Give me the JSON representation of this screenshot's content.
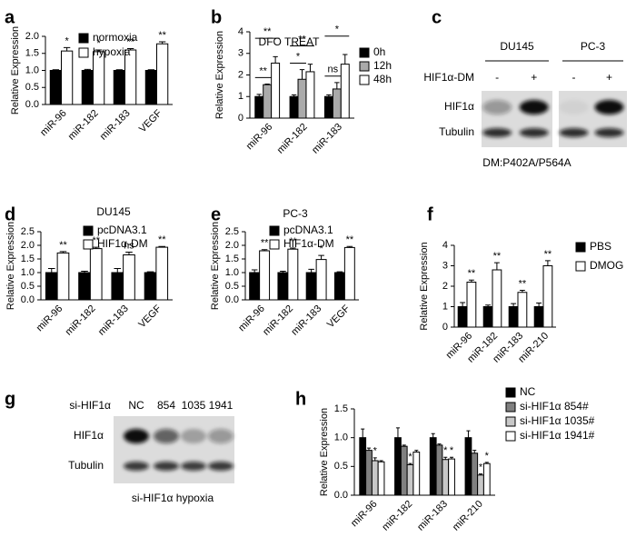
{
  "chart_data": [
    {
      "type": "bar",
      "panel": "a",
      "y_label": "Relative Expression",
      "categories": [
        "miR-96",
        "miR-182",
        "miR-183",
        "VEGF"
      ],
      "series": [
        {
          "name": "normoxia",
          "color": "#000000",
          "values": [
            1,
            1,
            1,
            1
          ],
          "errors": [
            0.02,
            0.03,
            0.02,
            0.02
          ],
          "significance": [
            null,
            null,
            null,
            null
          ]
        },
        {
          "name": "hypoxia",
          "color": "#ffffff",
          "values": [
            1.57,
            1.55,
            1.6,
            1.78
          ],
          "errors": [
            0.1,
            0.05,
            0.04,
            0.06
          ],
          "significance": [
            "*",
            "*",
            "**",
            "**"
          ]
        }
      ],
      "ylim": [
        0,
        2.0
      ],
      "yticks": [
        {
          "value": 0,
          "label": "0.0"
        },
        {
          "value": 0.5,
          "label": "0.5"
        },
        {
          "value": 1,
          "label": "1.0"
        },
        {
          "value": 1.5,
          "label": "1.5"
        },
        {
          "value": 2,
          "label": "2.0"
        }
      ]
    },
    {
      "type": "bar",
      "panel": "b",
      "title": "DFO TREAT",
      "y_label": "Relative Expression",
      "categories": [
        "miR-96",
        "miR-182",
        "miR-183"
      ],
      "series": [
        {
          "name": "0h",
          "color": "#000000",
          "values": [
            1,
            1,
            1
          ],
          "errors": [
            0.1,
            0.08,
            0.08
          ]
        },
        {
          "name": "12h",
          "color": "#aaaaaa",
          "values": [
            1.55,
            1.8,
            1.35
          ],
          "errors": [
            0.03,
            0.45,
            0.3
          ]
        },
        {
          "name": "48h",
          "color": "#ffffff",
          "values": [
            2.55,
            2.15,
            2.5
          ],
          "errors": [
            0.3,
            0.35,
            0.45
          ]
        }
      ],
      "comparisons": [
        {
          "category": 0,
          "from": 0,
          "to": 1,
          "label": "**"
        },
        {
          "category": 0,
          "from": 0,
          "to": 2,
          "label": "**"
        },
        {
          "category": 1,
          "from": 0,
          "to": 1,
          "label": "*"
        },
        {
          "category": 1,
          "from": 0,
          "to": 2,
          "label": "**"
        },
        {
          "category": 2,
          "from": 0,
          "to": 1,
          "label": "ns"
        },
        {
          "category": 2,
          "from": 0,
          "to": 2,
          "label": "*"
        }
      ],
      "ylim": [
        0,
        4
      ],
      "yticks": [
        0,
        1,
        2,
        3,
        4
      ]
    },
    {
      "type": "blot",
      "panel": "c",
      "treatment": "HIF1α-DM",
      "groups": [
        {
          "name": "DU145",
          "lanes": [
            "-",
            "+"
          ]
        },
        {
          "name": "PC-3",
          "lanes": [
            "-",
            "+"
          ]
        }
      ],
      "rows": [
        "HIF1α",
        "Tubulin"
      ],
      "caption": "DM:P402A/P564A"
    },
    {
      "type": "bar",
      "panel": "d",
      "title": "DU145",
      "y_label": "Relative Expression",
      "categories": [
        "miR-96",
        "miR-182",
        "miR-183",
        "VEGF"
      ],
      "series": [
        {
          "name": "pcDNA3.1",
          "color": "#000000",
          "values": [
            1,
            1,
            1,
            1
          ],
          "errors": [
            0.15,
            0.05,
            0.15,
            0.03
          ],
          "significance": [
            null,
            null,
            null,
            null
          ]
        },
        {
          "name": "HIF1α-DM",
          "color": "#ffffff",
          "values": [
            1.72,
            1.88,
            1.65,
            1.93
          ],
          "errors": [
            0.05,
            0.05,
            0.1,
            0.03
          ],
          "significance": [
            "**",
            "**",
            "ns",
            "**"
          ]
        }
      ],
      "ylim": [
        0,
        2.5
      ],
      "yticks": [
        {
          "value": 0,
          "label": "0.0"
        },
        {
          "value": 0.5,
          "label": "0.5"
        },
        {
          "value": 1,
          "label": "1.0"
        },
        {
          "value": 1.5,
          "label": "1.5"
        },
        {
          "value": 2,
          "label": "2.0"
        },
        {
          "value": 2.5,
          "label": "2.5"
        }
      ]
    },
    {
      "type": "bar",
      "panel": "e",
      "title": "PC-3",
      "y_label": "Relative Expression",
      "categories": [
        "miR-96",
        "miR-182",
        "miR-183",
        "VEGF"
      ],
      "series": [
        {
          "name": "pcDNA3.1",
          "color": "#000000",
          "values": [
            1,
            1,
            1,
            1
          ],
          "errors": [
            0.1,
            0.05,
            0.12,
            0.03
          ],
          "significance": [
            null,
            null,
            null,
            null
          ]
        },
        {
          "name": "HIF1α-DM",
          "color": "#ffffff",
          "values": [
            1.8,
            1.86,
            1.48,
            1.92
          ],
          "errors": [
            0.04,
            0.04,
            0.15,
            0.04
          ],
          "significance": [
            "**",
            "**",
            "*",
            "**"
          ]
        }
      ],
      "ylim": [
        0,
        2.5
      ],
      "yticks": [
        {
          "value": 0,
          "label": "0.0"
        },
        {
          "value": 0.5,
          "label": "0.5"
        },
        {
          "value": 1,
          "label": "1.0"
        },
        {
          "value": 1.5,
          "label": "1.5"
        },
        {
          "value": 2,
          "label": "2.0"
        },
        {
          "value": 2.5,
          "label": "2.5"
        }
      ]
    },
    {
      "type": "bar",
      "panel": "f",
      "y_label": "Relative Expression",
      "categories": [
        "miR-96",
        "miR-182",
        "miR-183",
        "miR-210"
      ],
      "series": [
        {
          "name": "PBS",
          "color": "#000000",
          "values": [
            1,
            1,
            1,
            1
          ],
          "errors": [
            0.2,
            0.08,
            0.15,
            0.18
          ],
          "significance": [
            null,
            null,
            null,
            null
          ]
        },
        {
          "name": "DMOG",
          "color": "#ffffff",
          "values": [
            2.2,
            2.8,
            1.7,
            3.0
          ],
          "errors": [
            0.1,
            0.35,
            0.1,
            0.25
          ],
          "significance": [
            "**",
            "**",
            "**",
            "**"
          ]
        }
      ],
      "ylim": [
        0,
        4
      ],
      "yticks": [
        0,
        1,
        2,
        3,
        4
      ]
    },
    {
      "type": "blot",
      "panel": "g",
      "treatment": "si-HIF1α",
      "groups": [
        {
          "lanes": [
            "NC",
            "854",
            "1035",
            "1941"
          ]
        }
      ],
      "rows": [
        "HIF1α",
        "Tubulin"
      ],
      "caption": "si-HIF1α hypoxia"
    },
    {
      "type": "bar",
      "panel": "h",
      "y_label": "Relative Expression",
      "categories": [
        "miR-96",
        "miR-182",
        "miR-183",
        "miR-210"
      ],
      "series": [
        {
          "name": "NC",
          "color": "#000000",
          "values": [
            1,
            1,
            1,
            1
          ],
          "errors": [
            0.15,
            0.17,
            0.07,
            0.12
          ],
          "significance": [
            null,
            null,
            null,
            null
          ]
        },
        {
          "name": "si-HIF1α 854#",
          "color": "#808080",
          "values": [
            0.78,
            0.85,
            0.87,
            0.73
          ],
          "errors": [
            0.04,
            0.02,
            0.02,
            0.05
          ],
          "significance": [
            null,
            null,
            null,
            null
          ]
        },
        {
          "name": "si-HIF1α 1035#",
          "color": "#c8c8c8",
          "values": [
            0.6,
            0.53,
            0.62,
            0.35
          ],
          "errors": [
            0.05,
            0.02,
            0.04,
            0.02
          ],
          "significance": [
            "*",
            "*",
            "*",
            "*"
          ]
        },
        {
          "name": "si-HIF1α 1941#",
          "color": "#ffffff",
          "values": [
            0.58,
            0.75,
            0.63,
            0.55
          ],
          "errors": [
            0.02,
            0.03,
            0.03,
            0.02
          ],
          "significance": [
            null,
            null,
            "*",
            "*"
          ]
        }
      ],
      "ylim": [
        0,
        1.5
      ],
      "yticks": [
        {
          "value": 0,
          "label": "0.0"
        },
        {
          "value": 0.5,
          "label": "0.5"
        },
        {
          "value": 1,
          "label": "1.0"
        },
        {
          "value": 1.5,
          "label": "1.5"
        }
      ]
    }
  ]
}
